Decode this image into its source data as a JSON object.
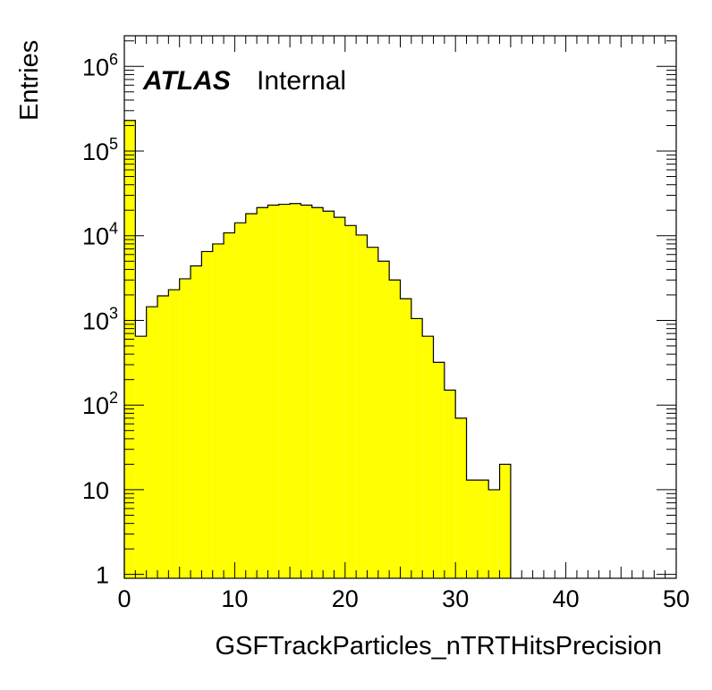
{
  "chart_data": {
    "type": "bar",
    "xlabel": "GSFTrackParticles_nTRTHitsPrecision",
    "ylabel": "Entries",
    "xlim": [
      0,
      50
    ],
    "ylim": [
      0.9,
      2300000
    ],
    "log_y": true,
    "bin_width": 1,
    "fill_color": "#ffff00",
    "x_ticks": [
      "0",
      "10",
      "20",
      "30",
      "40",
      "50"
    ],
    "y_ticks": [
      {
        "value": 1,
        "base": "1",
        "exp": ""
      },
      {
        "value": 10,
        "base": "10",
        "exp": ""
      },
      {
        "value": 100,
        "base": "10",
        "exp": "2"
      },
      {
        "value": 1000,
        "base": "10",
        "exp": "3"
      },
      {
        "value": 10000,
        "base": "10",
        "exp": "4"
      },
      {
        "value": 100000,
        "base": "10",
        "exp": "5"
      },
      {
        "value": 1000000,
        "base": "10",
        "exp": "6"
      }
    ],
    "bin_edges_start": [
      0,
      1,
      2,
      3,
      4,
      5,
      6,
      7,
      8,
      9,
      10,
      11,
      12,
      13,
      14,
      15,
      16,
      17,
      18,
      19,
      20,
      21,
      22,
      23,
      24,
      25,
      26,
      27,
      28,
      29,
      30,
      31,
      32,
      33,
      34
    ],
    "values": [
      230000,
      650,
      1450,
      1950,
      2300,
      3100,
      4400,
      6500,
      8000,
      10800,
      14200,
      18200,
      21500,
      23000,
      23500,
      24000,
      23000,
      21500,
      19500,
      16500,
      13200,
      10200,
      7300,
      5000,
      3000,
      1800,
      1050,
      650,
      320,
      150,
      70,
      13,
      13,
      10,
      20
    ],
    "label": {
      "experiment": "ATLAS",
      "status": "Internal"
    }
  }
}
